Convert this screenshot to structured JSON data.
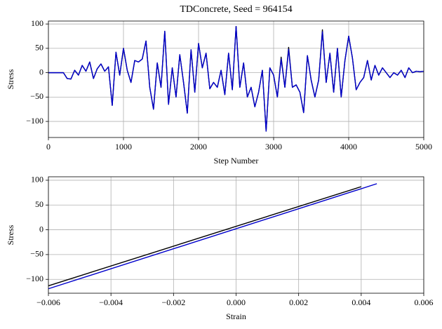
{
  "chart_data": [
    {
      "type": "line",
      "title": "TDConcrete, Seed = 964154",
      "x_label": "Step Number",
      "y_label": "Stress",
      "xlim": [
        0,
        5000
      ],
      "ylim": [
        -133,
        106
      ],
      "xticks": [
        0,
        1000,
        2000,
        3000,
        4000,
        5000
      ],
      "yticks": [
        {
          "value": -100,
          "label": "−100"
        },
        {
          "value": -50,
          "label": "−50"
        },
        0,
        50,
        100
      ],
      "grid": true,
      "x": [
        0,
        50,
        100,
        150,
        200,
        250,
        300,
        350,
        400,
        450,
        500,
        550,
        600,
        650,
        700,
        750,
        800,
        850,
        900,
        950,
        1000,
        1050,
        1100,
        1150,
        1200,
        1250,
        1300,
        1350,
        1400,
        1450,
        1500,
        1550,
        1600,
        1650,
        1700,
        1750,
        1800,
        1850,
        1900,
        1950,
        2000,
        2050,
        2100,
        2150,
        2200,
        2250,
        2300,
        2350,
        2400,
        2450,
        2500,
        2550,
        2600,
        2650,
        2700,
        2750,
        2800,
        2850,
        2900,
        2950,
        3000,
        3050,
        3100,
        3150,
        3200,
        3250,
        3300,
        3350,
        3400,
        3450,
        3500,
        3550,
        3600,
        3650,
        3700,
        3750,
        3800,
        3850,
        3900,
        3950,
        4000,
        4050,
        4100,
        4150,
        4200,
        4250,
        4300,
        4350,
        4400,
        4450,
        4500,
        4550,
        4600,
        4650,
        4700,
        4750,
        4800,
        4850,
        4900,
        4950,
        5000
      ],
      "series": [
        {
          "color": "#000000",
          "values": [
            0,
            0,
            0,
            0,
            0,
            -12,
            -13,
            5,
            -5,
            15,
            3,
            22,
            -12,
            8,
            18,
            3,
            12,
            -67,
            42,
            -5,
            50,
            5,
            -20,
            25,
            22,
            28,
            65,
            -30,
            -75,
            20,
            -30,
            85,
            -65,
            10,
            -50,
            37,
            -20,
            -83,
            47,
            -40,
            60,
            10,
            40,
            -33,
            -20,
            -30,
            5,
            -45,
            40,
            -35,
            95,
            -30,
            20,
            -50,
            -30,
            -70,
            -40,
            5,
            -120,
            10,
            -5,
            -50,
            32,
            -30,
            52,
            -30,
            -25,
            -40,
            -82,
            35,
            -15,
            -50,
            -15,
            88,
            -20,
            40,
            -40,
            50,
            -50,
            25,
            75,
            30,
            -35,
            -20,
            -10,
            25,
            -15,
            15,
            -5,
            10,
            0,
            -10,
            0,
            -5,
            5,
            -10,
            10,
            0,
            3,
            2,
            3
          ]
        },
        {
          "color": "#0000cc",
          "values": [
            0,
            0,
            0,
            0,
            0,
            -12,
            -13,
            5,
            -5,
            15,
            3,
            22,
            -12,
            8,
            18,
            3,
            12,
            -67,
            42,
            -5,
            50,
            5,
            -20,
            25,
            22,
            28,
            65,
            -30,
            -75,
            20,
            -30,
            85,
            -65,
            10,
            -50,
            37,
            -20,
            -83,
            47,
            -40,
            60,
            10,
            40,
            -33,
            -20,
            -30,
            5,
            -45,
            40,
            -35,
            95,
            -30,
            20,
            -50,
            -30,
            -70,
            -40,
            5,
            -120,
            10,
            -5,
            -50,
            28,
            -30,
            48,
            -30,
            -25,
            -40,
            -82,
            35,
            -15,
            -50,
            -15,
            84,
            -20,
            40,
            -40,
            50,
            -50,
            25,
            75,
            30,
            -35,
            -20,
            -10,
            25,
            -15,
            15,
            -5,
            10,
            0,
            -10,
            0,
            -5,
            5,
            -10,
            10,
            0,
            3,
            2,
            3
          ]
        }
      ]
    },
    {
      "type": "line",
      "x_label": "Strain",
      "y_label": "Stress",
      "xlim": [
        -0.006,
        0.006
      ],
      "ylim": [
        -128,
        107
      ],
      "xticks": [
        {
          "value": -0.006,
          "label": "−0.006"
        },
        {
          "value": -0.004,
          "label": "−0.004"
        },
        {
          "value": -0.002,
          "label": "−0.002"
        },
        {
          "value": 0,
          "label": "0.000"
        },
        0.002,
        0.004,
        0.006
      ],
      "yticks": [
        {
          "value": -100,
          "label": "−100"
        },
        {
          "value": -50,
          "label": "−50"
        },
        0,
        50,
        100
      ],
      "grid": true,
      "series": [
        {
          "color": "#000000",
          "x": [
            -0.006,
            0.004
          ],
          "values": [
            -113,
            87
          ]
        },
        {
          "color": "#0000cc",
          "x": [
            -0.006,
            0.0045
          ],
          "values": [
            -119,
            93
          ]
        }
      ]
    }
  ]
}
